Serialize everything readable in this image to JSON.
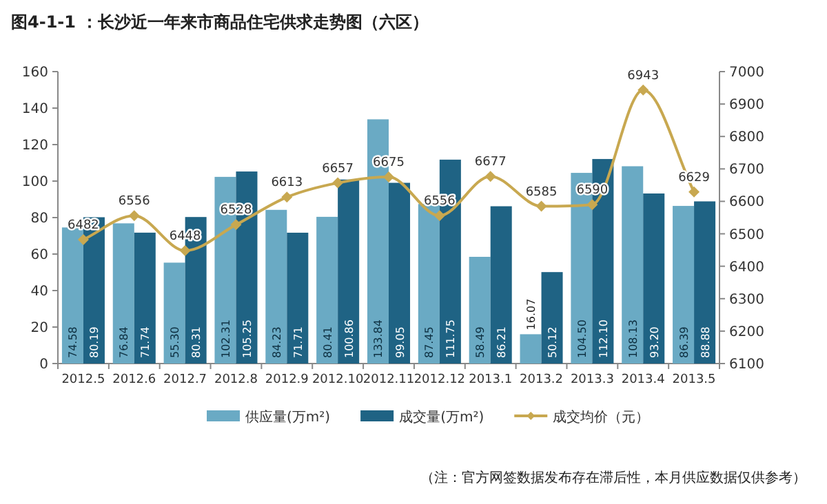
{
  "chart_data": {
    "type": "bar",
    "title": "图4-1-1 ：长沙近一年来市商品住宅供求走势图（六区）",
    "categories": [
      "2012.5",
      "2012.6",
      "2012.7",
      "2012.8",
      "2012.9",
      "2012.10",
      "2012.11",
      "2012.12",
      "2013.1",
      "2013.2",
      "2013.3",
      "2013.4",
      "2013.5"
    ],
    "series": [
      {
        "name": "供应量(万m²)",
        "color": "#6aaac4",
        "values": [
          74.58,
          76.84,
          55.3,
          102.31,
          84.23,
          80.41,
          133.84,
          87.45,
          58.49,
          16.07,
          104.5,
          108.13,
          86.39
        ],
        "value_labels": [
          "74.58",
          "76.84",
          "55.30",
          "102.31",
          "84.23",
          "80.41",
          "133.84",
          "87.45",
          "58.49",
          "16.07",
          "104.50",
          "108.13",
          "86.39"
        ]
      },
      {
        "name": "成交量(万m²)",
        "color": "#1f6384",
        "values": [
          80.19,
          71.74,
          80.31,
          105.25,
          71.71,
          100.86,
          99.05,
          111.75,
          86.21,
          50.12,
          112.1,
          93.2,
          88.88
        ],
        "value_labels": [
          "80.19",
          "71.74",
          "80.31",
          "105.25",
          "71.71",
          "100.86",
          "99.05",
          "111.75",
          "86.21",
          "50.12",
          "112.10",
          "93.20",
          "88.88"
        ]
      },
      {
        "name": "成交均价（元）",
        "type": "line",
        "axis": "y2",
        "color": "#c8a850",
        "marker": "diamond",
        "values": [
          6482,
          6556,
          6448,
          6528,
          6613,
          6657,
          6675,
          6556,
          6677,
          6585,
          6590,
          6943,
          6629
        ]
      }
    ],
    "ylim": [
      0,
      160
    ],
    "yticks": [
      0,
      20,
      40,
      60,
      80,
      100,
      120,
      140,
      160
    ],
    "y2lim": [
      6100,
      7000
    ],
    "y2ticks": [
      6100,
      6200,
      6300,
      6400,
      6500,
      6600,
      6700,
      6800,
      6900,
      7000
    ],
    "data_labels": true,
    "legend": "bottom",
    "grid": false,
    "annotations": [
      "（注：官方网签数据发布存在滞后性，本月供应数据仅供参考）"
    ]
  }
}
